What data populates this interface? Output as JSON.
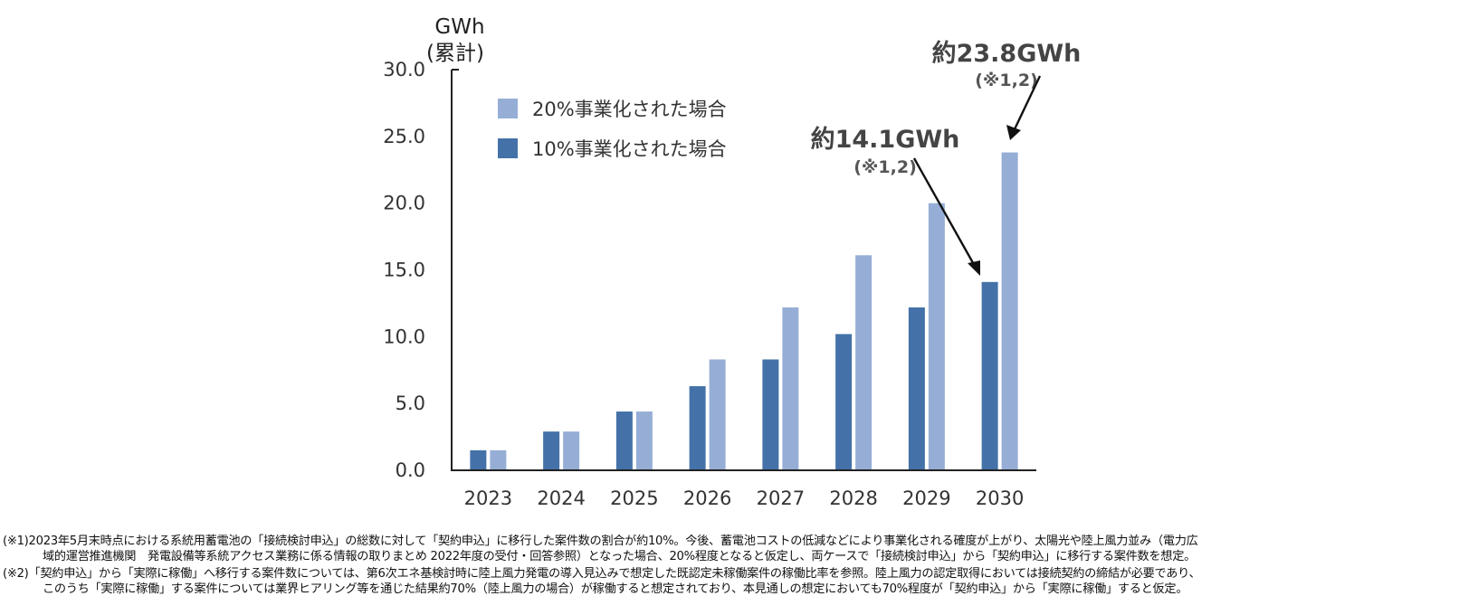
{
  "chart_data": {
    "type": "bar",
    "title": "",
    "ylabel": "GWh",
    "ylabel_sub": "(累計)",
    "ylim": [
      0,
      30
    ],
    "yticks": [
      "0.0",
      "5.0",
      "10.0",
      "15.0",
      "20.0",
      "25.0",
      "30.0"
    ],
    "ytick_values": [
      0,
      5,
      10,
      15,
      20,
      25,
      30
    ],
    "categories": [
      "2023",
      "2024",
      "2025",
      "2026",
      "2027",
      "2028",
      "2029",
      "2030"
    ],
    "series": [
      {
        "name": "10%事業化された場合",
        "color": "#4472a8",
        "values": [
          1.5,
          2.9,
          4.4,
          6.3,
          8.3,
          10.2,
          12.2,
          14.1
        ]
      },
      {
        "name": "20%事業化された場合",
        "color": "#96aed6",
        "values": [
          1.5,
          2.9,
          4.4,
          8.3,
          12.2,
          16.1,
          20.0,
          23.8
        ]
      }
    ],
    "legend_order": [
      "20%事業化された場合",
      "10%事業化された場合"
    ],
    "legend_position": "top-left",
    "annotations": [
      {
        "label": "約14.1GWh",
        "sub": "(※1,2)",
        "series": 0,
        "category": "2030"
      },
      {
        "label": "約23.8GWh",
        "sub": "(※1,2)",
        "series": 1,
        "category": "2030"
      }
    ]
  },
  "notes": [
    {
      "line1": "(※1)2023年5月末時点における系統用蓄電池の「接続検討申込」の総数に対して「契約申込」に移行した案件数の割合が約10%。今後、蓄電池コストの低減などにより事業化される確度が上がり、太陽光や陸上風力並み（電力広",
      "line2": "域的運営推進機関　発電設備等系統アクセス業務に係る情報の取りまとめ 2022年度の受付・回答参照）となった場合、20%程度となると仮定し、両ケースで「接続検討申込」から「契約申込」に移行する案件数を想定。"
    },
    {
      "line1": "(※2)「契約申込」から「実際に稼働」へ移行する案件数については、第6次エネ基検討時に陸上風力発電の導入見込みで想定した既認定未稼働案件の稼働比率を参照。陸上風力の認定取得においては接続契約の締結が必要であり、",
      "line2": "このうち「実際に稼働」する案件については業界ヒアリング等を通じた結果約70%（陸上風力の場合）が稼働すると想定されており、本見通しの想定においても70%程度が「契約申込」から「実際に稼働」すると仮定。"
    }
  ]
}
